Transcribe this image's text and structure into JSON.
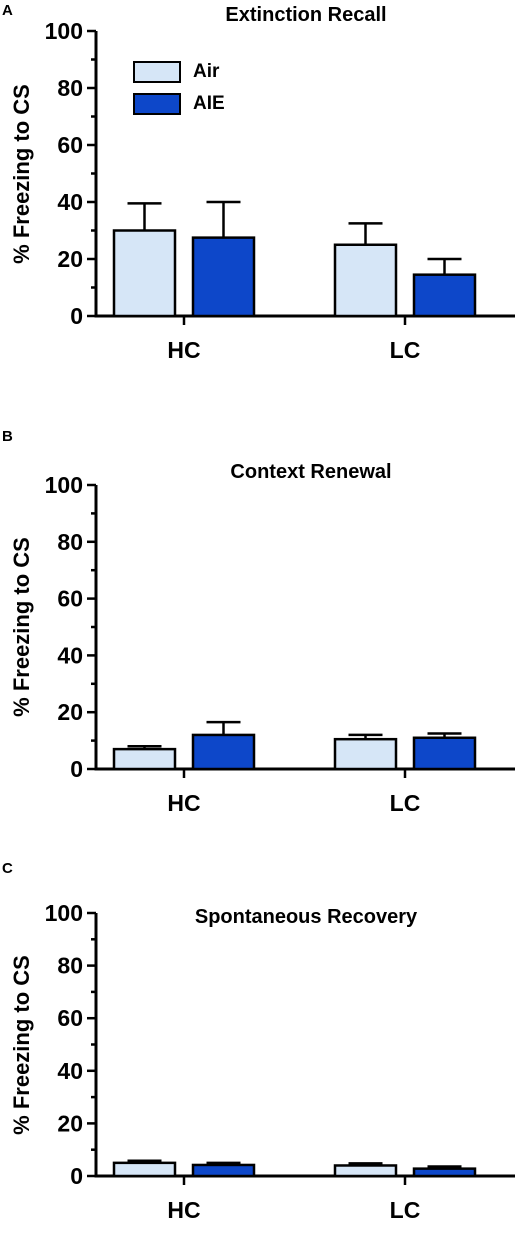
{
  "colors": {
    "air": "#d6e6f7",
    "aie": "#0d47c9",
    "axis": "#000000"
  },
  "legend": [
    {
      "label": "Air",
      "color": "#d6e6f7"
    },
    {
      "label": "AIE",
      "color": "#0d47c9"
    }
  ],
  "chart_data": [
    {
      "type": "bar",
      "panel": "A",
      "title": "Extinction Recall",
      "ylabel": "% Freezing to CS",
      "categories": [
        "HC",
        "LC"
      ],
      "ylim": [
        0,
        100
      ],
      "yticks": [
        "0",
        "20",
        "40",
        "60",
        "80",
        "100"
      ],
      "series": [
        {
          "name": "Air",
          "values": [
            30,
            25
          ],
          "errors": [
            9.5,
            7.5
          ]
        },
        {
          "name": "AIE",
          "values": [
            27.5,
            14.5
          ],
          "errors": [
            12.5,
            5.5
          ]
        }
      ]
    },
    {
      "type": "bar",
      "panel": "B",
      "title": "Context Renewal",
      "ylabel": "% Freezing to CS",
      "categories": [
        "HC",
        "LC"
      ],
      "ylim": [
        0,
        100
      ],
      "yticks": [
        "0",
        "20",
        "40",
        "60",
        "80",
        "100"
      ],
      "series": [
        {
          "name": "Air",
          "values": [
            7,
            10.5
          ],
          "errors": [
            1,
            1.5
          ]
        },
        {
          "name": "AIE",
          "values": [
            12,
            11
          ],
          "errors": [
            4.5,
            1.5
          ]
        }
      ]
    },
    {
      "type": "bar",
      "panel": "C",
      "title": "Spontaneous Recovery",
      "ylabel": "% Freezing to CS",
      "categories": [
        "HC",
        "LC"
      ],
      "ylim": [
        0,
        100
      ],
      "yticks": [
        "0",
        "20",
        "40",
        "60",
        "80",
        "100"
      ],
      "series": [
        {
          "name": "Air",
          "values": [
            5,
            4
          ],
          "errors": [
            0.8,
            0.8
          ]
        },
        {
          "name": "AIE",
          "values": [
            4.2,
            2.8
          ],
          "errors": [
            0.8,
            0.8
          ]
        }
      ]
    }
  ]
}
